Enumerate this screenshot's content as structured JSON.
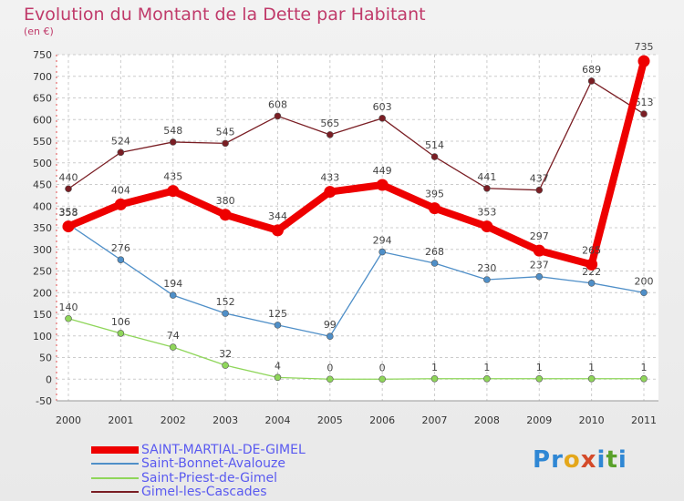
{
  "header": {
    "title": "Evolution du Montant de la Dette par Habitant",
    "subtitle": "(en €)"
  },
  "logo": {
    "text": "Proxiti",
    "colors": [
      "#2f87d4",
      "#2f87d4",
      "#e4a71b",
      "#d44a2a",
      "#2f87d4",
      "#5aa12a"
    ]
  },
  "chart_data": {
    "type": "line",
    "x": [
      "2000",
      "2001",
      "2002",
      "2003",
      "2004",
      "2005",
      "2006",
      "2007",
      "2008",
      "2009",
      "2010",
      "2011"
    ],
    "ylim": [
      -50,
      750
    ],
    "yticks": [
      -50,
      0,
      50,
      100,
      150,
      200,
      250,
      300,
      350,
      400,
      450,
      500,
      550,
      600,
      650,
      700,
      750
    ],
    "grid": true,
    "legend_position": "bottom-left",
    "series": [
      {
        "name": "Gimel-les-Cascades",
        "color": "#7a1e24",
        "values": [
          440,
          524,
          548,
          545,
          608,
          565,
          603,
          514,
          441,
          437,
          689,
          613
        ],
        "labels": [
          "440",
          "524",
          "548",
          "545",
          "608",
          "565",
          "603",
          "514",
          "441",
          "437",
          "689",
          "613"
        ]
      },
      {
        "name": "Saint-Bonnet-Avalouze",
        "color": "#4f8fc8",
        "values": [
          358,
          276,
          194,
          152,
          125,
          99,
          294,
          268,
          230,
          237,
          222,
          200
        ],
        "labels": [
          "358",
          "276",
          "194",
          "152",
          "125",
          "99",
          "294",
          "268",
          "230",
          "237",
          "222",
          "200"
        ]
      },
      {
        "name": "Saint-Priest-de-Gimel",
        "color": "#8fd65a",
        "values": [
          140,
          106,
          74,
          32,
          4,
          0,
          0,
          1,
          1,
          1,
          1,
          1
        ],
        "labels": [
          "140",
          "106",
          "74",
          "32",
          "4",
          "0",
          "0",
          "1",
          "1",
          "1",
          "1",
          "1"
        ]
      },
      {
        "name": "SAINT-MARTIAL-DE-GIMEL",
        "color": "#ee0000",
        "thick": true,
        "values": [
          353,
          404,
          435,
          380,
          344,
          433,
          449,
          395,
          353,
          297,
          265,
          735
        ],
        "labels": [
          "353",
          "404",
          "435",
          "380",
          "344",
          "433",
          "449",
          "395",
          "353",
          "297",
          "265",
          "735"
        ]
      }
    ],
    "legend": [
      {
        "name": "SAINT-MARTIAL-DE-GIMEL",
        "color": "#ee0000",
        "thick": true
      },
      {
        "name": "Saint-Bonnet-Avalouze",
        "color": "#4f8fc8"
      },
      {
        "name": "Saint-Priest-de-Gimel",
        "color": "#8fd65a"
      },
      {
        "name": "Gimel-les-Cascades",
        "color": "#7a1e24"
      }
    ]
  }
}
